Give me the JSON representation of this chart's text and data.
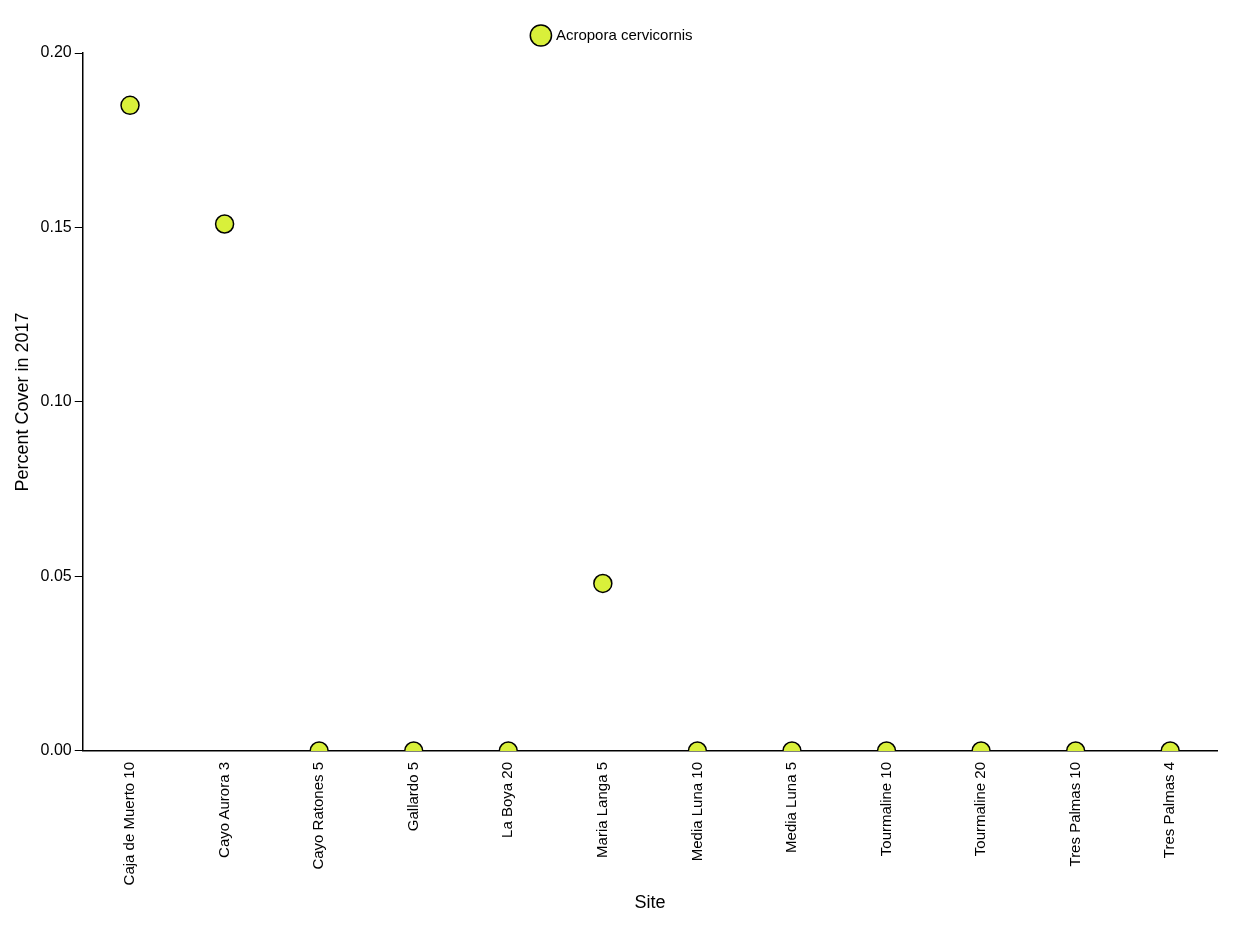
{
  "chart_data": {
    "type": "scatter",
    "xlabel": "Site",
    "ylabel": "Percent Cover in 2017",
    "categories": [
      "Caja de Muerto 10",
      "Cayo Aurora 3",
      "Cayo Ratones 5",
      "Gallardo 5",
      "La Boya 20",
      "Maria Langa 5",
      "Media Luna 10",
      "Media Luna 5",
      "Tourmaline 10",
      "Tourmaline 20",
      "Tres Palmas 10",
      "Tres Palmas 4"
    ],
    "series": [
      {
        "name": "Acropora cervicornis",
        "color": "#d9f03a",
        "values": [
          0.185,
          0.151,
          0,
          0,
          0,
          0.048,
          0,
          0,
          0,
          0,
          0,
          0
        ]
      }
    ],
    "ylim": [
      0,
      0.2
    ],
    "yticks": [
      {
        "value": 0,
        "label": "0.00"
      },
      {
        "value": 0.05,
        "label": "0.05"
      },
      {
        "value": 0.1,
        "label": "0.10"
      },
      {
        "value": 0.15,
        "label": "0.15"
      },
      {
        "value": 0.2,
        "label": "0.20"
      }
    ],
    "grid": false,
    "legend": "top",
    "marker": "circle"
  }
}
